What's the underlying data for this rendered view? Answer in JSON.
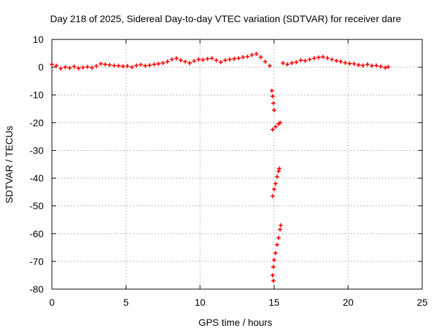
{
  "chart_data": {
    "type": "scatter",
    "title": "Day 218 of 2025, Sidereal Day-to-day VTEC variation (SDTVAR) for receiver dare",
    "xlabel": "GPS time / hours",
    "ylabel": "SDTVAR / TECUs",
    "xlim": [
      0,
      25
    ],
    "ylim": [
      -80,
      10
    ],
    "xticks": [
      0,
      5,
      10,
      15,
      20,
      25
    ],
    "yticks": [
      10,
      0,
      -10,
      -20,
      -30,
      -40,
      -50,
      -60,
      -70,
      -80
    ],
    "grid": true,
    "marker": "plus",
    "color": "#ff0000",
    "series": [
      {
        "name": "SDTVAR",
        "points": [
          [
            0.0,
            1.0
          ],
          [
            0.3,
            0.5
          ],
          [
            0.6,
            -0.5
          ],
          [
            0.9,
            0.0
          ],
          [
            1.2,
            -0.3
          ],
          [
            1.5,
            0.2
          ],
          [
            1.8,
            -0.4
          ],
          [
            2.1,
            -0.1
          ],
          [
            2.4,
            0.1
          ],
          [
            2.7,
            -0.2
          ],
          [
            3.0,
            0.4
          ],
          [
            3.3,
            1.2
          ],
          [
            3.6,
            1.0
          ],
          [
            3.9,
            0.8
          ],
          [
            4.2,
            0.6
          ],
          [
            4.5,
            0.5
          ],
          [
            4.8,
            0.3
          ],
          [
            5.1,
            0.4
          ],
          [
            5.4,
            0.0
          ],
          [
            5.7,
            0.6
          ],
          [
            6.0,
            0.9
          ],
          [
            6.3,
            0.5
          ],
          [
            6.6,
            0.7
          ],
          [
            6.9,
            1.0
          ],
          [
            7.2,
            1.2
          ],
          [
            7.5,
            1.5
          ],
          [
            7.8,
            2.0
          ],
          [
            8.1,
            2.8
          ],
          [
            8.4,
            3.2
          ],
          [
            8.7,
            2.5
          ],
          [
            9.0,
            2.0
          ],
          [
            9.3,
            1.5
          ],
          [
            9.6,
            2.2
          ],
          [
            9.9,
            2.8
          ],
          [
            10.2,
            2.6
          ],
          [
            10.5,
            3.0
          ],
          [
            10.8,
            3.2
          ],
          [
            11.1,
            2.5
          ],
          [
            11.4,
            1.8
          ],
          [
            11.7,
            2.5
          ],
          [
            12.0,
            2.8
          ],
          [
            12.3,
            3.0
          ],
          [
            12.6,
            3.2
          ],
          [
            12.9,
            3.6
          ],
          [
            13.2,
            3.8
          ],
          [
            13.5,
            4.4
          ],
          [
            13.8,
            4.8
          ],
          [
            14.1,
            3.6
          ],
          [
            14.4,
            2.0
          ],
          [
            14.7,
            0.5
          ],
          [
            14.85,
            -8.5
          ],
          [
            14.9,
            -10.5
          ],
          [
            14.95,
            -13.0
          ],
          [
            15.0,
            -15.5
          ],
          [
            14.9,
            -22.5
          ],
          [
            15.1,
            -21.5
          ],
          [
            15.3,
            -20.5
          ],
          [
            15.4,
            -20.0
          ],
          [
            14.9,
            -46.5
          ],
          [
            15.0,
            -44.0
          ],
          [
            15.1,
            -42.0
          ],
          [
            15.2,
            -39.5
          ],
          [
            15.3,
            -37.5
          ],
          [
            15.35,
            -36.5
          ],
          [
            14.9,
            -75.0
          ],
          [
            14.95,
            -72.0
          ],
          [
            15.0,
            -69.5
          ],
          [
            15.1,
            -67.0
          ],
          [
            15.2,
            -64.0
          ],
          [
            15.3,
            -61.5
          ],
          [
            15.4,
            -58.5
          ],
          [
            15.45,
            -57.0
          ],
          [
            14.95,
            -77.0
          ],
          [
            15.6,
            1.5
          ],
          [
            15.9,
            1.0
          ],
          [
            16.2,
            1.5
          ],
          [
            16.5,
            1.8
          ],
          [
            16.8,
            2.5
          ],
          [
            17.1,
            2.3
          ],
          [
            17.4,
            2.8
          ],
          [
            17.7,
            3.2
          ],
          [
            18.0,
            3.5
          ],
          [
            18.3,
            3.7
          ],
          [
            18.6,
            3.3
          ],
          [
            18.9,
            2.8
          ],
          [
            19.2,
            2.3
          ],
          [
            19.5,
            2.0
          ],
          [
            19.8,
            1.6
          ],
          [
            20.1,
            1.3
          ],
          [
            20.4,
            1.2
          ],
          [
            20.7,
            0.8
          ],
          [
            21.0,
            0.6
          ],
          [
            21.3,
            1.0
          ],
          [
            21.6,
            0.5
          ],
          [
            21.9,
            0.6
          ],
          [
            22.2,
            0.2
          ],
          [
            22.5,
            -0.2
          ],
          [
            22.7,
            0.1
          ]
        ]
      }
    ]
  }
}
